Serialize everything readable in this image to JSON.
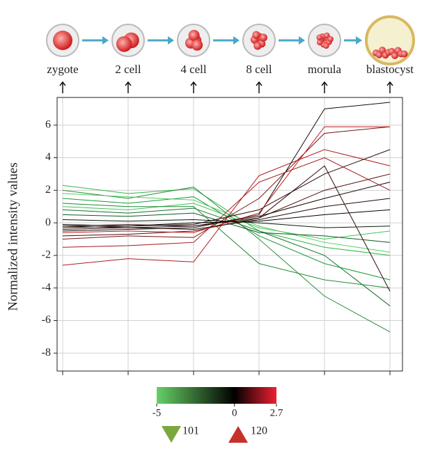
{
  "chart_data": {
    "type": "line",
    "y_label": "Normalized intensity values",
    "categories": [
      "zygote",
      "2 cell",
      "4 cell",
      "8 cell",
      "morula",
      "blastocyst"
    ],
    "ylim": [
      -9.1,
      7.7
    ],
    "yticks": [
      -8,
      -6,
      -4,
      -2,
      0,
      2,
      4,
      6
    ],
    "grid": true,
    "series": [
      {
        "color": "#2fb84a",
        "values": [
          2.3,
          1.8,
          2.1,
          -0.5,
          -1.5,
          -2
        ]
      },
      {
        "color": "#1a9a3a",
        "values": [
          1.5,
          1.2,
          1.6,
          -0.8,
          -2.5,
          -3.5
        ]
      },
      {
        "color": "#2a8a3a",
        "values": [
          2.0,
          1.5,
          2.2,
          -1.0,
          -4.5,
          -6.7
        ]
      },
      {
        "color": "#3cc455",
        "values": [
          1.0,
          0.8,
          1.2,
          -0.3,
          -1.0,
          -0.5
        ]
      },
      {
        "color": "#16702c",
        "values": [
          0.8,
          0.6,
          0.9,
          -0.5,
          -2.0,
          -5.1
        ]
      },
      {
        "color": "#4fd060",
        "values": [
          1.8,
          1.6,
          1.4,
          -0.2,
          -1.2,
          -1.8
        ]
      },
      {
        "color": "#1e8a36",
        "values": [
          1.2,
          1.0,
          1.0,
          -2.5,
          -3.5,
          -4.0
        ]
      },
      {
        "color": "#0e5a22",
        "values": [
          0.5,
          0.4,
          0.6,
          -0.6,
          -0.8,
          -1.2
        ]
      },
      {
        "color": "#b01a1a",
        "values": [
          -2.6,
          -2.2,
          -2.4,
          2.9,
          4.5,
          3.5
        ]
      },
      {
        "color": "#1a0a0a",
        "values": [
          -0.5,
          -0.4,
          -0.3,
          0.5,
          7.0,
          7.4
        ]
      },
      {
        "color": "#7a1010",
        "values": [
          -1.0,
          -0.8,
          -0.9,
          1.5,
          5.5,
          5.9
        ]
      },
      {
        "color": "#2a0808",
        "values": [
          -0.3,
          -0.2,
          -0.1,
          0.8,
          3.0,
          4.5
        ]
      },
      {
        "color": "#4a0c0c",
        "values": [
          -0.8,
          -0.7,
          -0.5,
          0.3,
          2.0,
          3.0
        ]
      },
      {
        "color": "#140404",
        "values": [
          -0.2,
          -0.3,
          -0.2,
          0.4,
          1.5,
          2.5
        ]
      },
      {
        "color": "#a01818",
        "values": [
          -1.5,
          -1.4,
          -1.2,
          2.5,
          4.0,
          2.0
        ]
      },
      {
        "color": "#200606",
        "values": [
          -0.4,
          -0.3,
          -0.4,
          0.2,
          1.0,
          1.5
        ]
      },
      {
        "color": "#000000",
        "values": [
          -0.1,
          -0.2,
          0,
          0.1,
          0.5,
          0.8
        ]
      },
      {
        "color": "#0a1a0a",
        "values": [
          0.2,
          0.1,
          0.2,
          0,
          -0.3,
          -0.2
        ]
      },
      {
        "color": "#c01818",
        "values": [
          -0.6,
          -0.5,
          -0.6,
          0.6,
          5.9,
          5.9
        ]
      },
      {
        "color": "#300a0a",
        "values": [
          -0.2,
          -0.1,
          -0.2,
          0.3,
          3.5,
          -4.2
        ]
      }
    ],
    "colorbar": {
      "ticks": [
        -5,
        0,
        2.7
      ],
      "colors": [
        "#66d066",
        "#000000",
        "#ee2030"
      ]
    },
    "down_count": "101",
    "up_count": "120"
  }
}
